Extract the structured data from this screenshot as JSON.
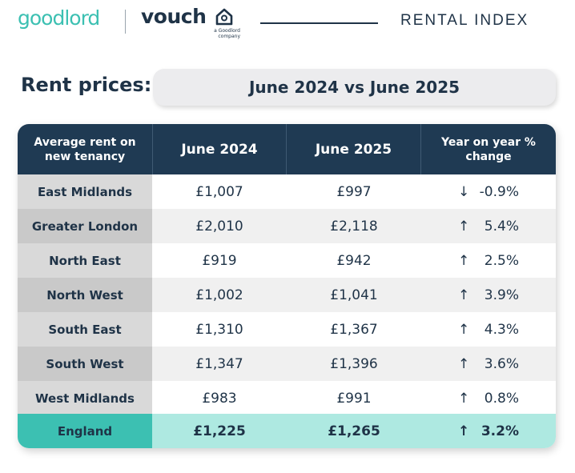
{
  "header": {
    "brand_goodlord": "goodlord",
    "brand_vouch": "vouch",
    "vouch_tagline_1": "a Goodlord",
    "vouch_tagline_2": "company",
    "report_title": "RENTAL INDEX"
  },
  "section": {
    "label": "Rent prices:",
    "comparison": "June 2024 vs June 2025"
  },
  "table": {
    "headers": {
      "region_1": "Average rent on",
      "region_2": "new tenancy",
      "col_2024": "June 2024",
      "col_2025": "June 2025",
      "change_1": "Year on year %",
      "change_2": "change"
    },
    "rows": [
      {
        "region": "East Midlands",
        "june_2024": "£1,007",
        "june_2025": "£997",
        "direction": "↓",
        "change": "-0.9%"
      },
      {
        "region": "Greater London",
        "june_2024": "£2,010",
        "june_2025": "£2,118",
        "direction": "↑",
        "change": "5.4%"
      },
      {
        "region": "North East",
        "june_2024": "£919",
        "june_2025": "£942",
        "direction": "↑",
        "change": "2.5%"
      },
      {
        "region": "North West",
        "june_2024": "£1,002",
        "june_2025": "£1,041",
        "direction": "↑",
        "change": "3.9%"
      },
      {
        "region": "South East",
        "june_2024": "£1,310",
        "june_2025": "£1,367",
        "direction": "↑",
        "change": "4.3%"
      },
      {
        "region": "South West",
        "june_2024": "£1,347",
        "june_2025": "£1,396",
        "direction": "↑",
        "change": "3.6%"
      },
      {
        "region": "West Midlands",
        "june_2024": "£983",
        "june_2025": "£991",
        "direction": "↑",
        "change": "0.8%"
      }
    ],
    "total": {
      "region": "England",
      "june_2024": "£1,225",
      "june_2025": "£1,265",
      "direction": "↑",
      "change": "3.2%"
    }
  },
  "colors": {
    "navy": "#1f3a53",
    "teal": "#3cc0b2",
    "teal_light": "#aee9e1",
    "row_region_a": "#d9d9d9",
    "row_region_b": "#c9c9c9",
    "row_value_a": "#ffffff",
    "row_value_b": "#f0f0f0"
  }
}
